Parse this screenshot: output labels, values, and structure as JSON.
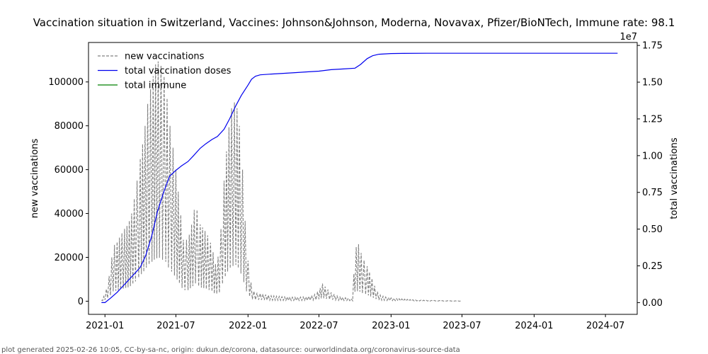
{
  "chart_data": {
    "type": "line",
    "title": "Vaccination situation in Switzerland, Vaccines: Johnson&Johnson, Moderna, Novavax, Pfizer/BioNTech, Immune rate: 98.1",
    "footer": "plot generated 2025-02-26 10:05, CC-by-sa-nc, origin: dukun.de/corona, datasource: ourworldindata.org/coronavirus-source-data",
    "ylabel_left": "new vaccinations",
    "ylabel_right": "total vaccinations",
    "right_axis_multiplier": "1e7",
    "x_range": [
      "2020-11-20",
      "2024-09-20"
    ],
    "y_left_range": [
      -6000,
      118000
    ],
    "y_right_range": [
      -0.08,
      1.77
    ],
    "grid": false,
    "legend_position": "top-left",
    "x_ticks": [
      "2021-01",
      "2021-07",
      "2022-01",
      "2022-07",
      "2023-01",
      "2023-07",
      "2024-01",
      "2024-07"
    ],
    "y_left_ticks": [
      "0",
      "20000",
      "40000",
      "60000",
      "80000",
      "100000"
    ],
    "y_right_ticks": [
      "0.00",
      "0.25",
      "0.50",
      "0.75",
      "1.00",
      "1.25",
      "1.50",
      "1.75"
    ],
    "series": [
      {
        "name": "new vaccinations",
        "axis": "left",
        "style": "dashed",
        "color": "#808080",
        "x": [
          "2020-12-23",
          "2021-01-01",
          "2021-01-08",
          "2021-01-15",
          "2021-01-22",
          "2021-02-01",
          "2021-02-10",
          "2021-02-20",
          "2021-03-01",
          "2021-03-10",
          "2021-03-20",
          "2021-04-01",
          "2021-04-10",
          "2021-04-20",
          "2021-05-01",
          "2021-05-10",
          "2021-05-20",
          "2021-05-28",
          "2021-06-05",
          "2021-06-12",
          "2021-06-20",
          "2021-07-01",
          "2021-07-10",
          "2021-07-20",
          "2021-08-01",
          "2021-08-10",
          "2021-08-20",
          "2021-09-01",
          "2021-09-10",
          "2021-09-20",
          "2021-10-01",
          "2021-10-10",
          "2021-10-20",
          "2021-11-01",
          "2021-11-10",
          "2021-11-20",
          "2021-12-01",
          "2021-12-10",
          "2021-12-18",
          "2021-12-28",
          "2022-01-05",
          "2022-01-12",
          "2022-01-20",
          "2022-02-01",
          "2022-02-15",
          "2022-03-01",
          "2022-04-01",
          "2022-05-01",
          "2022-06-01",
          "2022-06-20",
          "2022-07-01",
          "2022-07-10",
          "2022-07-20",
          "2022-08-01",
          "2022-08-20",
          "2022-09-10",
          "2022-09-25",
          "2022-10-01",
          "2022-10-10",
          "2022-10-20",
          "2022-11-01",
          "2022-11-10",
          "2022-11-20",
          "2022-12-01",
          "2022-12-15",
          "2023-01-01",
          "2023-01-15",
          "2023-02-01",
          "2023-03-01",
          "2023-04-01",
          "2023-05-01",
          "2023-06-01",
          "2023-07-01"
        ],
        "values": [
          500,
          3000,
          8000,
          15000,
          25000,
          27000,
          30000,
          33000,
          35000,
          40000,
          50000,
          65000,
          75000,
          90000,
          100000,
          108000,
          110000,
          105000,
          100000,
          85000,
          75000,
          60000,
          45000,
          28000,
          28000,
          35000,
          45000,
          35000,
          33000,
          30000,
          25000,
          17000,
          22000,
          55000,
          75000,
          88000,
          92000,
          80000,
          60000,
          25000,
          12000,
          5000,
          4000,
          3500,
          3000,
          2500,
          2000,
          1800,
          2000,
          3000,
          5000,
          8000,
          6000,
          4000,
          2000,
          1500,
          1000,
          24000,
          26000,
          20000,
          16000,
          12000,
          7000,
          3000,
          2000,
          1500,
          1200,
          1000,
          600,
          400,
          300,
          200,
          100
        ]
      },
      {
        "name": "total vaccination doses",
        "axis": "right",
        "style": "solid",
        "color": "#0000ee",
        "x": [
          "2020-12-23",
          "2021-01-01",
          "2021-01-15",
          "2021-02-01",
          "2021-02-15",
          "2021-03-01",
          "2021-03-15",
          "2021-04-01",
          "2021-04-15",
          "2021-05-01",
          "2021-05-15",
          "2021-06-01",
          "2021-06-15",
          "2021-07-01",
          "2021-07-15",
          "2021-08-01",
          "2021-08-15",
          "2021-09-01",
          "2021-09-15",
          "2021-10-01",
          "2021-10-15",
          "2021-11-01",
          "2021-11-15",
          "2021-12-01",
          "2021-12-15",
          "2022-01-01",
          "2022-01-10",
          "2022-01-20",
          "2022-02-01",
          "2022-03-01",
          "2022-04-01",
          "2022-05-01",
          "2022-06-01",
          "2022-07-01",
          "2022-08-01",
          "2022-09-01",
          "2022-10-01",
          "2022-10-15",
          "2022-11-01",
          "2022-11-15",
          "2022-12-01",
          "2023-01-01",
          "2023-02-01",
          "2023-04-01",
          "2023-07-01",
          "2024-01-01",
          "2024-08-01"
        ],
        "values": [
          0.0,
          0.0,
          0.03,
          0.07,
          0.11,
          0.15,
          0.19,
          0.24,
          0.32,
          0.46,
          0.62,
          0.76,
          0.86,
          0.9,
          0.93,
          0.96,
          1.0,
          1.05,
          1.08,
          1.11,
          1.13,
          1.18,
          1.25,
          1.34,
          1.41,
          1.48,
          1.52,
          1.54,
          1.55,
          1.555,
          1.56,
          1.565,
          1.57,
          1.575,
          1.585,
          1.59,
          1.595,
          1.62,
          1.66,
          1.68,
          1.69,
          1.695,
          1.696,
          1.697,
          1.697,
          1.697,
          1.697
        ]
      },
      {
        "name": "total immune",
        "axis": "right",
        "style": "solid",
        "color": "#008000",
        "x": [],
        "values": []
      }
    ]
  }
}
